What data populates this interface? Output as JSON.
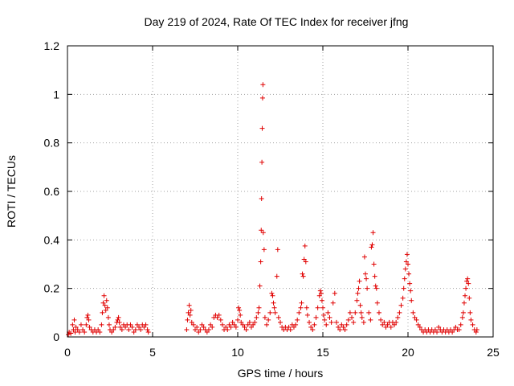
{
  "chart_data": {
    "type": "scatter",
    "title": "Day 219 of 2024, Rate Of TEC Index for receiver jfng",
    "xlabel": "GPS time / hours",
    "ylabel": "ROTI / TECUs",
    "xlim": [
      0,
      25
    ],
    "ylim": [
      0,
      1.2
    ],
    "xticks": [
      0,
      5,
      10,
      15,
      20,
      25
    ],
    "yticks": [
      0,
      0.2,
      0.4,
      0.6,
      0.8,
      1,
      1.2
    ],
    "xtick_labels": [
      "0",
      "5",
      "10",
      "15",
      "20",
      "25"
    ],
    "ytick_labels": [
      "0",
      "0.2",
      "0.4",
      "0.6",
      "0.8",
      "1",
      "1.2"
    ],
    "grid": true,
    "marker": "+",
    "color": "#e00000",
    "series": [
      {
        "name": "ROTI",
        "points": [
          [
            0.05,
            0.01
          ],
          [
            0.1,
            0.02
          ],
          [
            0.2,
            0.015
          ],
          [
            0.3,
            0.05
          ],
          [
            0.35,
            0.03
          ],
          [
            0.4,
            0.07
          ],
          [
            0.45,
            0.02
          ],
          [
            0.5,
            0.04
          ],
          [
            0.6,
            0.03
          ],
          [
            0.7,
            0.02
          ],
          [
            0.8,
            0.05
          ],
          [
            0.9,
            0.03
          ],
          [
            1.0,
            0.02
          ],
          [
            1.1,
            0.05
          ],
          [
            1.15,
            0.08
          ],
          [
            1.2,
            0.09
          ],
          [
            1.25,
            0.07
          ],
          [
            1.3,
            0.04
          ],
          [
            1.4,
            0.03
          ],
          [
            1.5,
            0.02
          ],
          [
            1.6,
            0.03
          ],
          [
            1.7,
            0.02
          ],
          [
            1.8,
            0.03
          ],
          [
            1.9,
            0.02
          ],
          [
            2.0,
            0.05
          ],
          [
            2.05,
            0.1
          ],
          [
            2.1,
            0.14
          ],
          [
            2.15,
            0.17
          ],
          [
            2.2,
            0.13
          ],
          [
            2.25,
            0.11
          ],
          [
            2.3,
            0.15
          ],
          [
            2.35,
            0.12
          ],
          [
            2.4,
            0.08
          ],
          [
            2.45,
            0.05
          ],
          [
            2.5,
            0.03
          ],
          [
            2.6,
            0.02
          ],
          [
            2.7,
            0.03
          ],
          [
            2.8,
            0.04
          ],
          [
            2.9,
            0.06
          ],
          [
            2.95,
            0.07
          ],
          [
            3.0,
            0.08
          ],
          [
            3.05,
            0.06
          ],
          [
            3.1,
            0.04
          ],
          [
            3.2,
            0.03
          ],
          [
            3.3,
            0.05
          ],
          [
            3.4,
            0.04
          ],
          [
            3.5,
            0.05
          ],
          [
            3.6,
            0.03
          ],
          [
            3.7,
            0.05
          ],
          [
            3.8,
            0.04
          ],
          [
            3.9,
            0.02
          ],
          [
            4.0,
            0.03
          ],
          [
            4.1,
            0.05
          ],
          [
            4.2,
            0.04
          ],
          [
            4.3,
            0.03
          ],
          [
            4.4,
            0.05
          ],
          [
            4.5,
            0.04
          ],
          [
            4.6,
            0.05
          ],
          [
            4.7,
            0.03
          ],
          [
            4.75,
            0.02
          ],
          [
            7.0,
            0.03
          ],
          [
            7.05,
            0.07
          ],
          [
            7.1,
            0.1
          ],
          [
            7.15,
            0.13
          ],
          [
            7.2,
            0.09
          ],
          [
            7.25,
            0.11
          ],
          [
            7.3,
            0.06
          ],
          [
            7.4,
            0.05
          ],
          [
            7.5,
            0.03
          ],
          [
            7.6,
            0.04
          ],
          [
            7.7,
            0.02
          ],
          [
            7.8,
            0.03
          ],
          [
            7.9,
            0.05
          ],
          [
            8.0,
            0.04
          ],
          [
            8.1,
            0.03
          ],
          [
            8.2,
            0.02
          ],
          [
            8.3,
            0.03
          ],
          [
            8.4,
            0.05
          ],
          [
            8.5,
            0.04
          ],
          [
            8.6,
            0.08
          ],
          [
            8.7,
            0.09
          ],
          [
            8.8,
            0.08
          ],
          [
            8.9,
            0.09
          ],
          [
            9.0,
            0.07
          ],
          [
            9.1,
            0.05
          ],
          [
            9.2,
            0.03
          ],
          [
            9.3,
            0.04
          ],
          [
            9.4,
            0.03
          ],
          [
            9.5,
            0.05
          ],
          [
            9.6,
            0.04
          ],
          [
            9.7,
            0.06
          ],
          [
            9.8,
            0.05
          ],
          [
            9.9,
            0.04
          ],
          [
            10.0,
            0.07
          ],
          [
            10.05,
            0.12
          ],
          [
            10.1,
            0.11
          ],
          [
            10.15,
            0.09
          ],
          [
            10.2,
            0.06
          ],
          [
            10.3,
            0.05
          ],
          [
            10.4,
            0.04
          ],
          [
            10.5,
            0.03
          ],
          [
            10.6,
            0.05
          ],
          [
            10.7,
            0.06
          ],
          [
            10.8,
            0.04
          ],
          [
            10.9,
            0.05
          ],
          [
            11.0,
            0.06
          ],
          [
            11.1,
            0.08
          ],
          [
            11.2,
            0.1
          ],
          [
            11.25,
            0.12
          ],
          [
            11.3,
            0.21
          ],
          [
            11.35,
            0.31
          ],
          [
            11.38,
            0.44
          ],
          [
            11.4,
            0.57
          ],
          [
            11.42,
            0.72
          ],
          [
            11.44,
            0.86
          ],
          [
            11.46,
            0.985
          ],
          [
            11.48,
            1.04
          ],
          [
            11.5,
            0.43
          ],
          [
            11.55,
            0.36
          ],
          [
            11.6,
            0.08
          ],
          [
            11.7,
            0.05
          ],
          [
            11.8,
            0.07
          ],
          [
            11.9,
            0.1
          ],
          [
            12.0,
            0.18
          ],
          [
            12.05,
            0.17
          ],
          [
            12.1,
            0.14
          ],
          [
            12.15,
            0.12
          ],
          [
            12.2,
            0.1
          ],
          [
            12.3,
            0.25
          ],
          [
            12.35,
            0.36
          ],
          [
            12.4,
            0.08
          ],
          [
            12.5,
            0.06
          ],
          [
            12.6,
            0.04
          ],
          [
            12.7,
            0.03
          ],
          [
            12.8,
            0.04
          ],
          [
            12.9,
            0.03
          ],
          [
            13.0,
            0.04
          ],
          [
            13.1,
            0.03
          ],
          [
            13.2,
            0.05
          ],
          [
            13.3,
            0.04
          ],
          [
            13.4,
            0.05
          ],
          [
            13.5,
            0.07
          ],
          [
            13.6,
            0.1
          ],
          [
            13.7,
            0.12
          ],
          [
            13.75,
            0.14
          ],
          [
            13.8,
            0.26
          ],
          [
            13.85,
            0.25
          ],
          [
            13.9,
            0.32
          ],
          [
            13.95,
            0.375
          ],
          [
            14.0,
            0.31
          ],
          [
            14.05,
            0.12
          ],
          [
            14.1,
            0.09
          ],
          [
            14.2,
            0.06
          ],
          [
            14.3,
            0.04
          ],
          [
            14.4,
            0.03
          ],
          [
            14.5,
            0.05
          ],
          [
            14.6,
            0.08
          ],
          [
            14.7,
            0.12
          ],
          [
            14.8,
            0.17
          ],
          [
            14.85,
            0.19
          ],
          [
            14.9,
            0.18
          ],
          [
            14.95,
            0.15
          ],
          [
            15.0,
            0.12
          ],
          [
            15.05,
            0.09
          ],
          [
            15.1,
            0.07
          ],
          [
            15.2,
            0.05
          ],
          [
            15.3,
            0.1
          ],
          [
            15.4,
            0.08
          ],
          [
            15.5,
            0.06
          ],
          [
            15.6,
            0.14
          ],
          [
            15.7,
            0.18
          ],
          [
            15.8,
            0.06
          ],
          [
            15.9,
            0.04
          ],
          [
            16.0,
            0.03
          ],
          [
            16.1,
            0.05
          ],
          [
            16.2,
            0.04
          ],
          [
            16.3,
            0.03
          ],
          [
            16.4,
            0.05
          ],
          [
            16.5,
            0.07
          ],
          [
            16.6,
            0.1
          ],
          [
            16.7,
            0.08
          ],
          [
            16.8,
            0.06
          ],
          [
            16.9,
            0.1
          ],
          [
            17.0,
            0.15
          ],
          [
            17.05,
            0.18
          ],
          [
            17.1,
            0.2
          ],
          [
            17.15,
            0.23
          ],
          [
            17.2,
            0.13
          ],
          [
            17.25,
            0.1
          ],
          [
            17.3,
            0.08
          ],
          [
            17.4,
            0.06
          ],
          [
            17.45,
            0.33
          ],
          [
            17.5,
            0.26
          ],
          [
            17.55,
            0.24
          ],
          [
            17.6,
            0.2
          ],
          [
            17.7,
            0.1
          ],
          [
            17.8,
            0.07
          ],
          [
            17.85,
            0.37
          ],
          [
            17.9,
            0.38
          ],
          [
            17.95,
            0.43
          ],
          [
            18.0,
            0.3
          ],
          [
            18.05,
            0.25
          ],
          [
            18.1,
            0.21
          ],
          [
            18.15,
            0.2
          ],
          [
            18.2,
            0.14
          ],
          [
            18.3,
            0.1
          ],
          [
            18.4,
            0.07
          ],
          [
            18.5,
            0.05
          ],
          [
            18.6,
            0.06
          ],
          [
            18.7,
            0.04
          ],
          [
            18.8,
            0.05
          ],
          [
            18.9,
            0.06
          ],
          [
            19.0,
            0.04
          ],
          [
            19.1,
            0.06
          ],
          [
            19.2,
            0.05
          ],
          [
            19.3,
            0.06
          ],
          [
            19.4,
            0.08
          ],
          [
            19.5,
            0.1
          ],
          [
            19.6,
            0.13
          ],
          [
            19.7,
            0.16
          ],
          [
            19.75,
            0.2
          ],
          [
            19.8,
            0.24
          ],
          [
            19.85,
            0.28
          ],
          [
            19.9,
            0.31
          ],
          [
            19.95,
            0.34
          ],
          [
            20.0,
            0.3
          ],
          [
            20.05,
            0.26
          ],
          [
            20.1,
            0.22
          ],
          [
            20.15,
            0.19
          ],
          [
            20.2,
            0.15
          ],
          [
            20.3,
            0.1
          ],
          [
            20.4,
            0.08
          ],
          [
            20.5,
            0.07
          ],
          [
            20.6,
            0.05
          ],
          [
            20.7,
            0.04
          ],
          [
            20.8,
            0.03
          ],
          [
            20.9,
            0.02
          ],
          [
            21.0,
            0.03
          ],
          [
            21.1,
            0.02
          ],
          [
            21.2,
            0.03
          ],
          [
            21.3,
            0.02
          ],
          [
            21.4,
            0.03
          ],
          [
            21.5,
            0.02
          ],
          [
            21.6,
            0.03
          ],
          [
            21.7,
            0.02
          ],
          [
            21.8,
            0.04
          ],
          [
            21.9,
            0.03
          ],
          [
            22.0,
            0.02
          ],
          [
            22.1,
            0.03
          ],
          [
            22.2,
            0.02
          ],
          [
            22.3,
            0.03
          ],
          [
            22.4,
            0.02
          ],
          [
            22.5,
            0.03
          ],
          [
            22.6,
            0.02
          ],
          [
            22.7,
            0.03
          ],
          [
            22.8,
            0.04
          ],
          [
            22.9,
            0.03
          ],
          [
            23.0,
            0.03
          ],
          [
            23.1,
            0.05
          ],
          [
            23.2,
            0.08
          ],
          [
            23.25,
            0.1
          ],
          [
            23.3,
            0.14
          ],
          [
            23.35,
            0.17
          ],
          [
            23.4,
            0.2
          ],
          [
            23.45,
            0.23
          ],
          [
            23.5,
            0.24
          ],
          [
            23.55,
            0.22
          ],
          [
            23.6,
            0.16
          ],
          [
            23.65,
            0.1
          ],
          [
            23.7,
            0.07
          ],
          [
            23.8,
            0.05
          ],
          [
            23.9,
            0.03
          ],
          [
            24.0,
            0.02
          ],
          [
            24.05,
            0.03
          ]
        ]
      }
    ]
  }
}
